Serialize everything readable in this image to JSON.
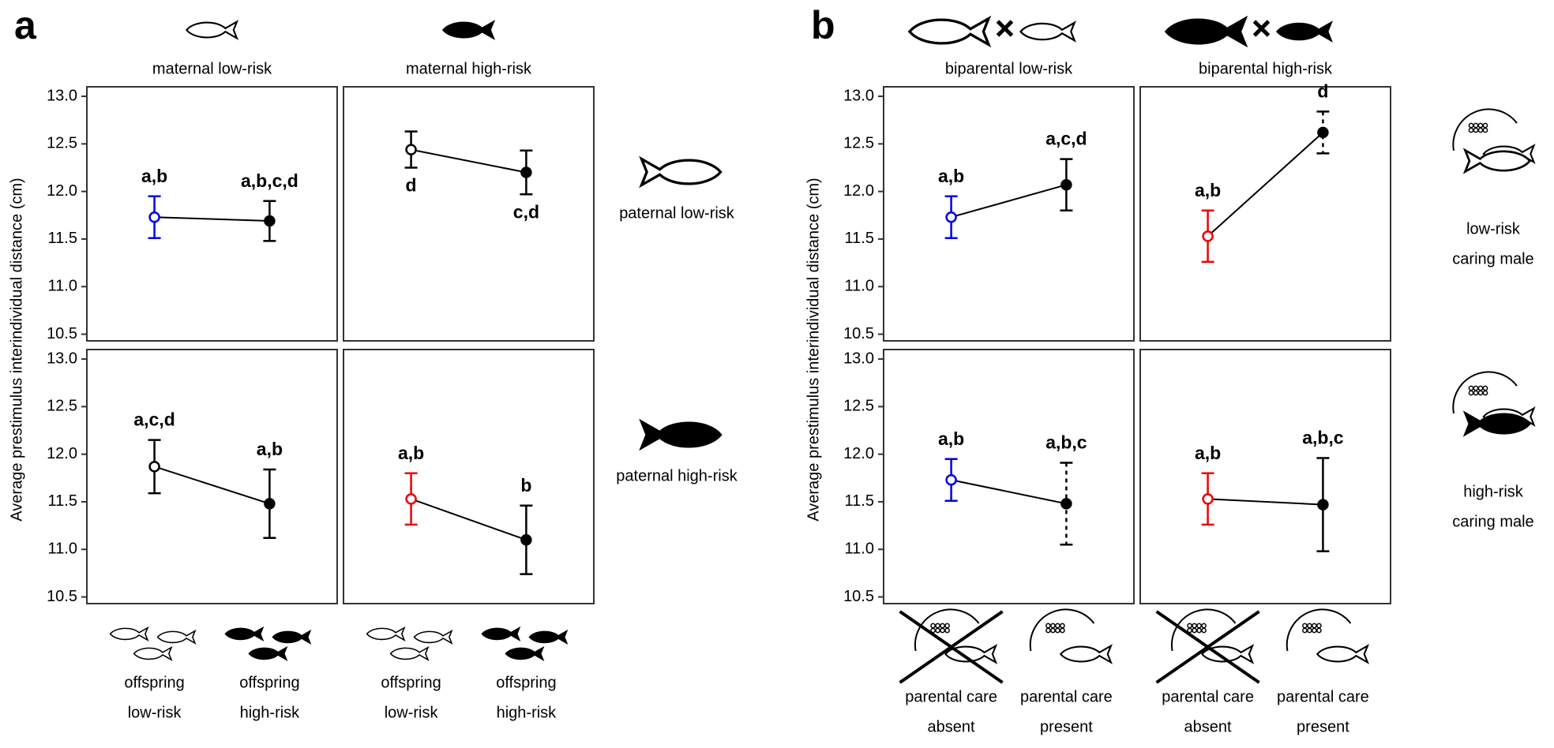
{
  "y_label": "Average prestimulus interindividual distance (cm)",
  "panels": [
    {
      "label": "a",
      "columns": [
        "maternal low-risk",
        "maternal high-risk"
      ],
      "rows": [
        [
          "paternal low-risk"
        ],
        [
          "paternal high-risk"
        ]
      ],
      "x_labels": [
        [
          "offspring",
          "low-risk"
        ],
        [
          "offspring",
          "high-risk"
        ]
      ]
    },
    {
      "label": "b",
      "columns": [
        "biparental low-risk",
        "biparental high-risk"
      ],
      "rows": [
        [
          "low-risk",
          "caring male"
        ],
        [
          "high-risk",
          "caring male"
        ]
      ],
      "x_labels": [
        [
          "parental care",
          "absent"
        ],
        [
          "parental care",
          "present"
        ]
      ]
    }
  ],
  "chart_data": [
    {
      "type": "errorbar",
      "ylim": [
        10.43,
        13.1
      ],
      "yticks": [
        10.5,
        {
          "value": 11,
          "label": "11.0"
        },
        11.5,
        {
          "value": 12,
          "label": "12.0"
        },
        12.5,
        {
          "value": 13,
          "label": "13.0"
        }
      ],
      "values": [
        11.73,
        11.69
      ],
      "errors": [
        0.22,
        0.21
      ],
      "annotations": [
        "a,b",
        "a,b,c,d"
      ],
      "annotation_side": "above",
      "point_colors": [
        "#0000ee",
        "#000000"
      ],
      "filled": [
        false,
        true
      ],
      "dashed": [
        false,
        false
      ]
    },
    {
      "type": "errorbar",
      "ylim": [
        10.43,
        13.1
      ],
      "values": [
        12.44,
        12.2
      ],
      "errors": [
        0.19,
        0.23
      ],
      "annotations": [
        "d",
        "c,d"
      ],
      "annotation_side": "below",
      "point_colors": [
        "#000000",
        "#000000"
      ],
      "filled": [
        false,
        true
      ],
      "dashed": [
        false,
        false
      ]
    },
    {
      "type": "errorbar",
      "ylim": [
        10.43,
        13.1
      ],
      "yticks": [
        10.5,
        {
          "value": 11,
          "label": "11.0"
        },
        11.5,
        {
          "value": 12,
          "label": "12.0"
        },
        12.5,
        {
          "value": 13,
          "label": "13.0"
        }
      ],
      "values": [
        11.87,
        11.48
      ],
      "errors": [
        0.28,
        0.36
      ],
      "annotations": [
        "a,c,d",
        "a,b"
      ],
      "annotation_side": "above",
      "point_colors": [
        "#000000",
        "#000000"
      ],
      "filled": [
        false,
        true
      ],
      "dashed": [
        false,
        false
      ]
    },
    {
      "type": "errorbar",
      "ylim": [
        10.43,
        13.1
      ],
      "values": [
        11.53,
        11.1
      ],
      "errors": [
        0.27,
        0.36
      ],
      "annotations": [
        "a,b",
        "b"
      ],
      "annotation_side": "above",
      "point_colors": [
        "#ee0000",
        "#000000"
      ],
      "filled": [
        false,
        true
      ],
      "dashed": [
        false,
        false
      ]
    },
    {
      "type": "errorbar",
      "ylim": [
        10.43,
        13.1
      ],
      "yticks": [
        10.5,
        {
          "value": 11,
          "label": "11.0"
        },
        11.5,
        {
          "value": 12,
          "label": "12.0"
        },
        12.5,
        {
          "value": 13,
          "label": "13.0"
        }
      ],
      "values": [
        11.73,
        12.07
      ],
      "errors": [
        0.22,
        0.27
      ],
      "annotations": [
        "a,b",
        "a,c,d"
      ],
      "annotation_side": "above",
      "point_colors": [
        "#0000ee",
        "#000000"
      ],
      "filled": [
        false,
        true
      ],
      "dashed": [
        false,
        false
      ]
    },
    {
      "type": "errorbar",
      "ylim": [
        10.43,
        13.1
      ],
      "values": [
        11.53,
        12.62
      ],
      "errors": [
        0.27,
        0.22
      ],
      "annotations": [
        "a,b",
        "d"
      ],
      "annotation_side": "above",
      "point_colors": [
        "#ee0000",
        "#000000"
      ],
      "filled": [
        false,
        true
      ],
      "dashed": [
        false,
        true
      ]
    },
    {
      "type": "errorbar",
      "ylim": [
        10.43,
        13.1
      ],
      "yticks": [
        10.5,
        {
          "value": 11,
          "label": "11.0"
        },
        11.5,
        {
          "value": 12,
          "label": "12.0"
        },
        12.5,
        {
          "value": 13,
          "label": "13.0"
        }
      ],
      "values": [
        11.73,
        11.48
      ],
      "errors": [
        0.22,
        0.43
      ],
      "annotations": [
        "a,b",
        "a,b,c"
      ],
      "annotation_side": "above",
      "point_colors": [
        "#0000ee",
        "#000000"
      ],
      "filled": [
        false,
        true
      ],
      "dashed": [
        false,
        true
      ]
    },
    {
      "type": "errorbar",
      "ylim": [
        10.43,
        13.1
      ],
      "values": [
        11.53,
        11.47
      ],
      "errors": [
        0.27,
        0.49
      ],
      "annotations": [
        "a,b",
        "a,b,c"
      ],
      "annotation_side": "above",
      "point_colors": [
        "#ee0000",
        "#000000"
      ],
      "filled": [
        false,
        true
      ],
      "dashed": [
        false,
        false
      ]
    }
  ]
}
